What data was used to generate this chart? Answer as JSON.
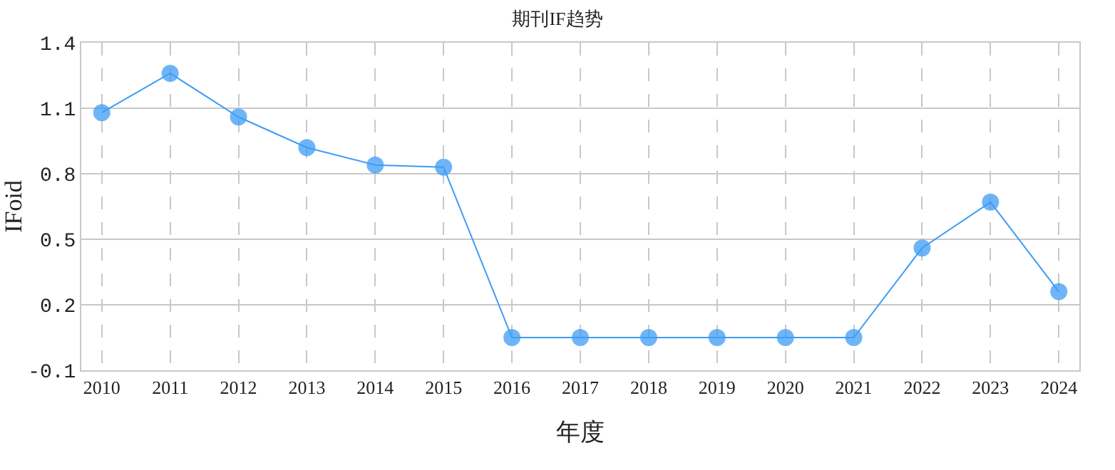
{
  "chart_data": {
    "type": "line",
    "title": "期刊IF趋势",
    "xlabel": "年度",
    "ylabel": "IFoid",
    "categories": [
      "2010",
      "2011",
      "2012",
      "2013",
      "2014",
      "2015",
      "2016",
      "2017",
      "2018",
      "2019",
      "2020",
      "2021",
      "2022",
      "2023",
      "2024"
    ],
    "series": [
      {
        "color": "#3d9cf5",
        "values": [
          1.08,
          1.26,
          1.06,
          0.92,
          0.84,
          0.83,
          0.05,
          0.05,
          0.05,
          0.05,
          0.05,
          0.05,
          0.46,
          0.67,
          0.26
        ]
      }
    ],
    "ylim": [
      -0.1,
      1.4
    ],
    "yticks": [
      -0.1,
      0.2,
      0.5,
      0.8,
      1.1,
      1.4
    ],
    "grid": true,
    "marker": "circle",
    "line_style": "solid"
  }
}
